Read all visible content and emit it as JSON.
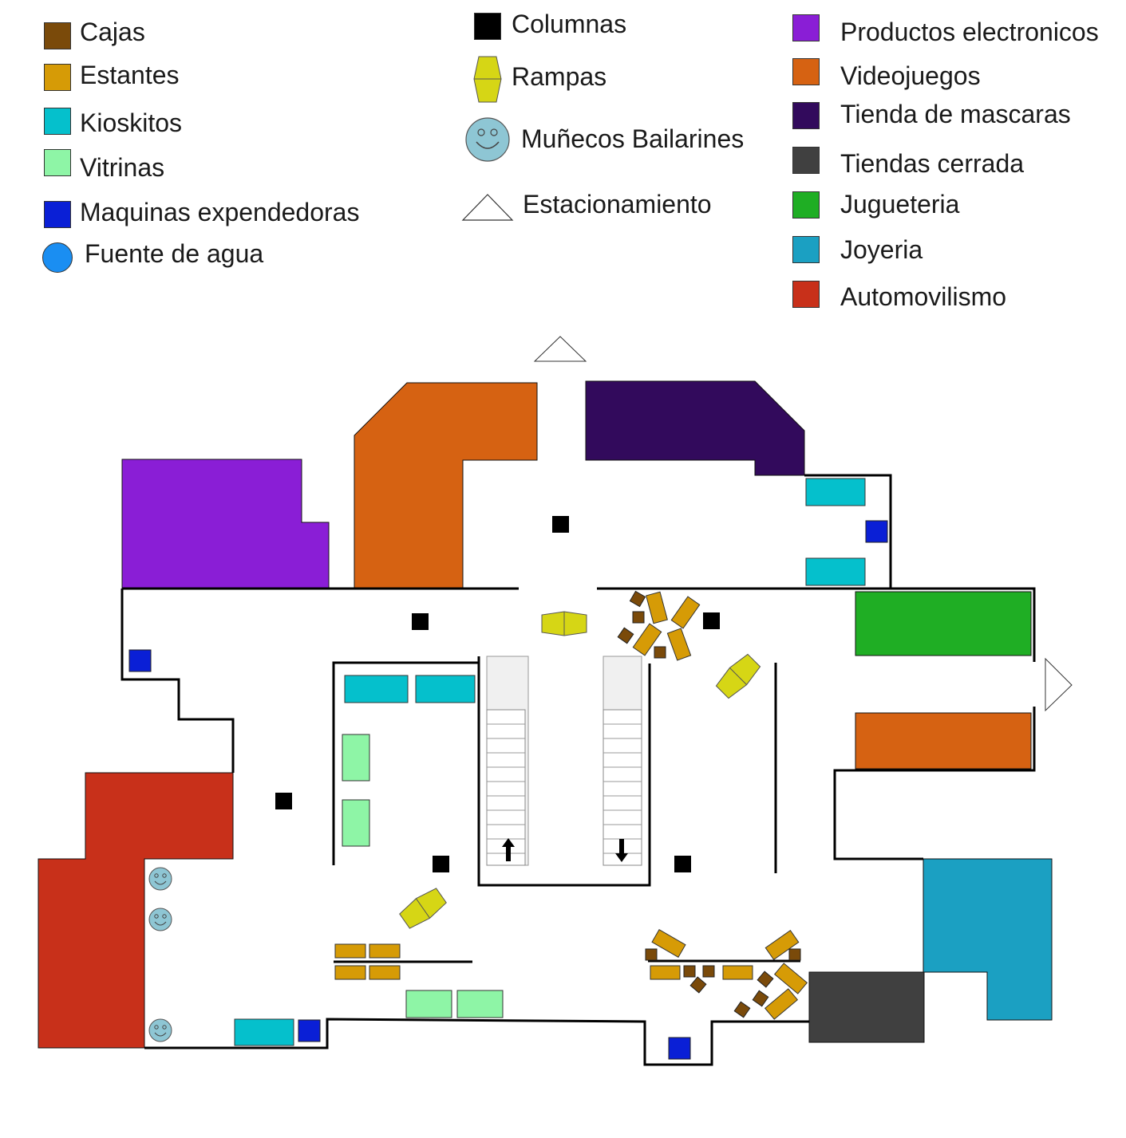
{
  "legend": {
    "col1": [
      {
        "label": "Cajas",
        "color": "#7a4a0a",
        "icon": "square-swatch"
      },
      {
        "label": "Estantes",
        "color": "#d69b06",
        "icon": "square-swatch"
      },
      {
        "label": "Kioskitos",
        "color": "#05c0cc",
        "icon": "square-swatch"
      },
      {
        "label": "Vitrinas",
        "color": "#8ef5a6",
        "icon": "square-swatch"
      },
      {
        "label": "Maquinas expendedoras",
        "color": "#0a1fd6",
        "icon": "square-swatch"
      },
      {
        "label": "Fuente de agua",
        "color": "#1a8ef2",
        "icon": "circle-swatch"
      }
    ],
    "col2": [
      {
        "label": "Columnas",
        "color": "#000000",
        "icon": "square-swatch"
      },
      {
        "label": "Rampas",
        "color": "#d6d615",
        "icon": "ramp-swatch"
      },
      {
        "label": "Muñecos Bailarines",
        "color": "#8ec6d4",
        "icon": "smiley-swatch"
      },
      {
        "label": "Estacionamiento",
        "color": "#ffffff",
        "icon": "triangle-swatch"
      }
    ],
    "col3": [
      {
        "label": "Productos electronicos",
        "color": "#8a1ed6",
        "icon": "square-swatch"
      },
      {
        "label": "Videojuegos",
        "color": "#d66212",
        "icon": "square-swatch"
      },
      {
        "label": "Tienda de mascaras",
        "color": "#320a5c",
        "icon": "square-swatch"
      },
      {
        "label": "Tiendas cerrada",
        "color": "#404040",
        "icon": "square-swatch"
      },
      {
        "label": "Jugueteria",
        "color": "#1fae24",
        "icon": "square-swatch"
      },
      {
        "label": "Joyeria",
        "color": "#1ba0c2",
        "icon": "square-swatch"
      },
      {
        "label": "Automovilismo",
        "color": "#c8301a",
        "icon": "square-swatch"
      }
    ]
  }
}
